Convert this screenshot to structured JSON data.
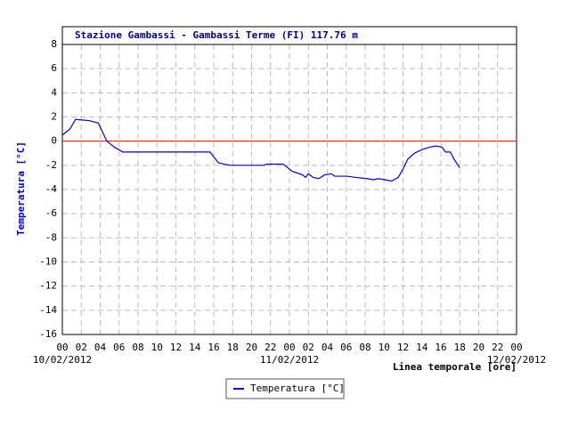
{
  "chart_data": {
    "type": "line",
    "title": "Stazione Gambassi - Gambassi Terme (FI) 117.76 m",
    "y_label": "Temperatura [°C]",
    "x_label": "Linea temporale [ore]",
    "x": [
      0,
      0.8,
      1.4,
      2.8,
      3.8,
      4.7,
      5.5,
      6.4,
      15.6,
      16.5,
      17.7,
      21.3,
      21.6,
      23.3,
      23.5,
      24.3,
      25.4,
      25.7,
      26,
      26.5,
      27.1,
      27.7,
      28.4,
      28.8,
      30.1,
      31,
      32.2,
      32.9,
      33.4,
      34.1,
      34.8,
      35.5,
      36,
      36.5,
      37.2,
      38,
      38.8,
      39.5,
      40.1,
      40.5,
      41,
      41.4,
      42
    ],
    "series": [
      {
        "name": "Temperatura [°C]",
        "color": "#0000cc",
        "values": [
          0.5,
          1.0,
          1.8,
          1.7,
          1.5,
          0,
          -0.5,
          -0.9,
          -0.9,
          -1.8,
          -2.0,
          -2.0,
          -1.9,
          -1.9,
          -2.0,
          -2.5,
          -2.8,
          -3.0,
          -2.7,
          -3.0,
          -3.1,
          -2.8,
          -2.7,
          -2.9,
          -2.9,
          -3.0,
          -3.1,
          -3.2,
          -3.1,
          -3.2,
          -3.3,
          -3.0,
          -2.3,
          -1.5,
          -1.0,
          -0.7,
          -0.5,
          -0.4,
          -0.5,
          -0.9,
          -0.9,
          -1.5,
          -2.2
        ]
      }
    ],
    "xlim": [
      0,
      48
    ],
    "xticks": [
      {
        "value": 0,
        "label": "00"
      },
      {
        "value": 2,
        "label": "02"
      },
      {
        "value": 4,
        "label": "04"
      },
      {
        "value": 6,
        "label": "06"
      },
      {
        "value": 8,
        "label": "08"
      },
      {
        "value": 10,
        "label": "10"
      },
      {
        "value": 12,
        "label": "12"
      },
      {
        "value": 14,
        "label": "14"
      },
      {
        "value": 16,
        "label": "16"
      },
      {
        "value": 18,
        "label": "18"
      },
      {
        "value": 20,
        "label": "20"
      },
      {
        "value": 22,
        "label": "22"
      },
      {
        "value": 24,
        "label": "00"
      },
      {
        "value": 26,
        "label": "02"
      },
      {
        "value": 28,
        "label": "04"
      },
      {
        "value": 30,
        "label": "06"
      },
      {
        "value": 32,
        "label": "08"
      },
      {
        "value": 34,
        "label": "10"
      },
      {
        "value": 36,
        "label": "12"
      },
      {
        "value": 38,
        "label": "14"
      },
      {
        "value": 40,
        "label": "16"
      },
      {
        "value": 42,
        "label": "18"
      },
      {
        "value": 44,
        "label": "20"
      },
      {
        "value": 46,
        "label": "22"
      },
      {
        "value": 48,
        "label": "00"
      }
    ],
    "date_labels": [
      {
        "value": 0,
        "label": "10/02/2012"
      },
      {
        "value": 24,
        "label": "11/02/2012"
      },
      {
        "value": 48,
        "label": "12/02/2012"
      }
    ],
    "ylim": [
      -16,
      8
    ],
    "yticks": [
      -16,
      -14,
      -12,
      -10,
      -8,
      -6,
      -4,
      -2,
      0,
      2,
      4,
      6,
      8
    ],
    "grid": true,
    "zero_line_color": "#ff0000",
    "legend": "bottom"
  }
}
